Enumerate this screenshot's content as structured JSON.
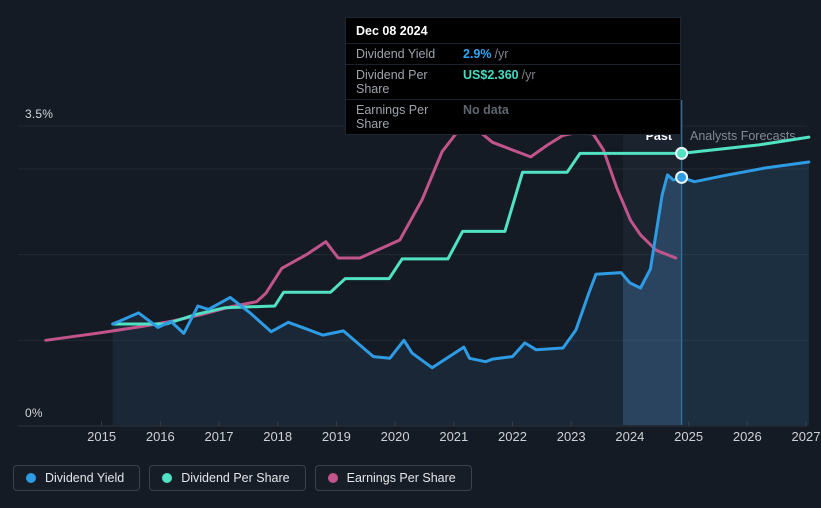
{
  "annotations": {
    "past_label": "Past",
    "forecast_label": "Analysts Forecasts"
  },
  "tooltip": {
    "date": "Dec 08 2024",
    "rows": [
      {
        "label": "Dividend Yield",
        "value": "2.9%",
        "suffix": " /yr",
        "value_color": "#2ea7f8"
      },
      {
        "label": "Dividend Per Share",
        "value": "US$2.360",
        "suffix": " /yr",
        "value_color": "#45dcc2"
      },
      {
        "label": "Earnings Per Share",
        "value": "No data",
        "suffix": "",
        "value_color": "#5f6670"
      }
    ]
  },
  "legend": {
    "items": [
      {
        "label": "Dividend Yield",
        "color": "#2e9be5"
      },
      {
        "label": "Dividend Per Share",
        "color": "#50e2c3"
      },
      {
        "label": "Earnings Per Share",
        "color": "#c2548c"
      }
    ]
  },
  "chart_data": {
    "type": "line",
    "x_axis": {
      "ticks": [
        "2015",
        "2016",
        "2017",
        "2018",
        "2019",
        "2020",
        "2021",
        "2022",
        "2023",
        "2024",
        "2025",
        "2026",
        "2027"
      ],
      "range": [
        2014.0,
        2027.2
      ]
    },
    "y_axis": {
      "unit": "%",
      "range": [
        0,
        3.5
      ],
      "top_label": "3.5%",
      "bottom_label": "0%",
      "gridlines": [
        0,
        1,
        2,
        3,
        3.5
      ]
    },
    "divider": {
      "x": 2024.88,
      "date": "Dec 08 2024",
      "band_years": 1.0
    },
    "colors": {
      "band": "rgba(148,198,255,0.05)",
      "area_past": "rgba(64,150,214,0.10)",
      "area_band": "rgba(84,168,236,0.26)",
      "area_forecast": "rgba(64,150,214,0.17)",
      "divider_line": "#2f6f9f"
    },
    "series": [
      {
        "name": "Dividend Yield",
        "color": "#2e9be5",
        "marker_value": 2.9,
        "points": [
          [
            2015.19,
            1.19
          ],
          [
            2015.63,
            1.32
          ],
          [
            2015.96,
            1.15
          ],
          [
            2016.18,
            1.22
          ],
          [
            2016.4,
            1.08
          ],
          [
            2016.64,
            1.4
          ],
          [
            2016.82,
            1.36
          ],
          [
            2017.19,
            1.5
          ],
          [
            2017.53,
            1.32
          ],
          [
            2017.89,
            1.1
          ],
          [
            2018.18,
            1.21
          ],
          [
            2018.46,
            1.14
          ],
          [
            2018.77,
            1.06
          ],
          [
            2019.12,
            1.11
          ],
          [
            2019.63,
            0.81
          ],
          [
            2019.91,
            0.79
          ],
          [
            2020.15,
            1.0
          ],
          [
            2020.29,
            0.85
          ],
          [
            2020.63,
            0.68
          ],
          [
            2021.17,
            0.92
          ],
          [
            2021.27,
            0.79
          ],
          [
            2021.54,
            0.75
          ],
          [
            2021.66,
            0.78
          ],
          [
            2022.0,
            0.81
          ],
          [
            2022.21,
            0.97
          ],
          [
            2022.4,
            0.89
          ],
          [
            2022.86,
            0.91
          ],
          [
            2023.08,
            1.12
          ],
          [
            2023.3,
            1.55
          ],
          [
            2023.42,
            1.77
          ],
          [
            2023.85,
            1.79
          ],
          [
            2024.0,
            1.67
          ],
          [
            2024.18,
            1.61
          ],
          [
            2024.35,
            1.83
          ],
          [
            2024.55,
            2.7
          ],
          [
            2024.64,
            2.93
          ],
          [
            2024.74,
            2.87
          ],
          [
            2024.88,
            2.9
          ],
          [
            2025.1,
            2.85
          ],
          [
            2025.6,
            2.92
          ],
          [
            2026.3,
            3.01
          ],
          [
            2027.05,
            3.08
          ]
        ]
      },
      {
        "name": "Dividend Per Share",
        "color": "#50e2c3",
        "marker_value": 3.18,
        "value_at_divider": "US$2.360 /yr",
        "points": [
          [
            2015.19,
            1.19
          ],
          [
            2016.1,
            1.19
          ],
          [
            2016.6,
            1.3
          ],
          [
            2017.1,
            1.38
          ],
          [
            2017.95,
            1.4
          ],
          [
            2018.1,
            1.56
          ],
          [
            2018.9,
            1.56
          ],
          [
            2019.15,
            1.72
          ],
          [
            2019.9,
            1.72
          ],
          [
            2020.12,
            1.95
          ],
          [
            2020.9,
            1.95
          ],
          [
            2021.15,
            2.27
          ],
          [
            2021.87,
            2.27
          ],
          [
            2022.17,
            2.96
          ],
          [
            2022.93,
            2.96
          ],
          [
            2023.15,
            3.18
          ],
          [
            2024.88,
            3.18
          ],
          [
            2025.4,
            3.22
          ],
          [
            2026.2,
            3.28
          ],
          [
            2027.05,
            3.37
          ]
        ]
      },
      {
        "name": "Earnings Per Share",
        "color": "#c2548c",
        "marker_value": null,
        "points": [
          [
            2014.05,
            1.0
          ],
          [
            2015.0,
            1.09
          ],
          [
            2015.67,
            1.16
          ],
          [
            2016.18,
            1.22
          ],
          [
            2016.7,
            1.3
          ],
          [
            2017.19,
            1.39
          ],
          [
            2017.64,
            1.45
          ],
          [
            2017.8,
            1.55
          ],
          [
            2018.07,
            1.84
          ],
          [
            2018.49,
            2.0
          ],
          [
            2018.82,
            2.15
          ],
          [
            2019.03,
            1.96
          ],
          [
            2019.4,
            1.96
          ],
          [
            2020.08,
            2.17
          ],
          [
            2020.46,
            2.64
          ],
          [
            2020.8,
            3.2
          ],
          [
            2021.06,
            3.43
          ],
          [
            2021.28,
            3.51
          ],
          [
            2021.5,
            3.4
          ],
          [
            2021.66,
            3.31
          ],
          [
            2022.0,
            3.22
          ],
          [
            2022.31,
            3.14
          ],
          [
            2022.6,
            3.28
          ],
          [
            2022.86,
            3.39
          ],
          [
            2023.07,
            3.42
          ],
          [
            2023.37,
            3.41
          ],
          [
            2023.55,
            3.22
          ],
          [
            2023.77,
            2.79
          ],
          [
            2024.01,
            2.4
          ],
          [
            2024.18,
            2.23
          ],
          [
            2024.45,
            2.05
          ],
          [
            2024.78,
            1.96
          ]
        ]
      }
    ]
  }
}
